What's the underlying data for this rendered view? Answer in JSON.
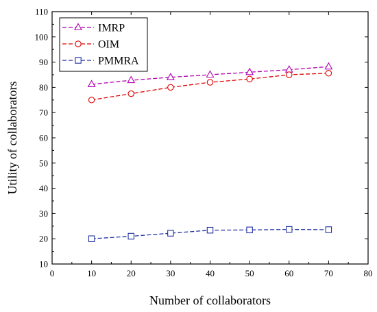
{
  "chart_data": {
    "type": "line",
    "xlabel": "Number of collaborators",
    "ylabel": "Utility of collaborators",
    "xlim": [
      0,
      80
    ],
    "ylim": [
      10,
      110
    ],
    "xticks": [
      0,
      10,
      20,
      30,
      40,
      50,
      60,
      70,
      80
    ],
    "yticks": [
      10,
      20,
      30,
      40,
      50,
      60,
      70,
      80,
      90,
      100,
      110
    ],
    "grid": false,
    "legend_position": "top-left",
    "x": [
      10,
      20,
      30,
      40,
      50,
      60,
      70
    ],
    "series": [
      {
        "name": "IMRP",
        "values": [
          81.2,
          82.8,
          84.0,
          85.0,
          86.0,
          87.0,
          88.2
        ],
        "color": "#b000b0",
        "marker": "triangle"
      },
      {
        "name": "OIM",
        "values": [
          75.0,
          77.5,
          80.0,
          82.0,
          83.3,
          85.0,
          85.6
        ],
        "color": "#e00000",
        "marker": "circle"
      },
      {
        "name": "PMMRA",
        "values": [
          20.0,
          21.0,
          22.2,
          23.4,
          23.5,
          23.7,
          23.6
        ],
        "color": "#2030a0",
        "marker": "square"
      }
    ]
  }
}
